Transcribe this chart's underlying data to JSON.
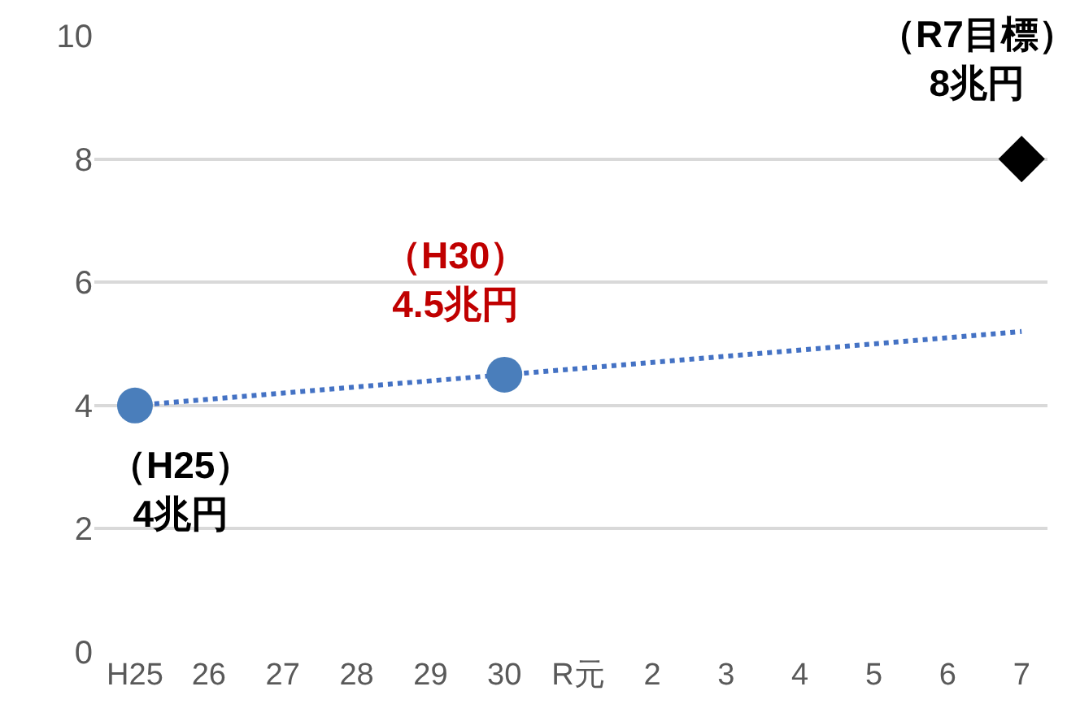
{
  "chart_data": {
    "type": "scatter",
    "categories": [
      "H25",
      "26",
      "27",
      "28",
      "29",
      "30",
      "R元",
      "2",
      "3",
      "4",
      "5",
      "6",
      "7"
    ],
    "ylim": [
      0,
      10
    ],
    "yticks": [
      0,
      2,
      4,
      6,
      8,
      10
    ],
    "grid": "y",
    "series": [
      {
        "type": "scatter",
        "color": "#4a7ebb",
        "marker": "circle",
        "values": [
          4,
          null,
          null,
          null,
          null,
          4.5,
          null,
          null,
          null,
          null,
          null,
          null,
          null
        ]
      },
      {
        "type": "scatter",
        "color": "#000000",
        "marker": "diamond",
        "values": [
          null,
          null,
          null,
          null,
          null,
          null,
          null,
          null,
          null,
          null,
          null,
          null,
          8
        ]
      },
      {
        "type": "line",
        "color": "#4472c4",
        "line_style": "dotted",
        "x": [
          "H25",
          "7"
        ],
        "values": [
          4.0,
          5.2
        ]
      }
    ],
    "annotations": [
      {
        "text": "（H25）\n4兆円",
        "x": "H25",
        "y": 4
      },
      {
        "text": "（H30）\n4.5兆円",
        "x": "30",
        "y": 4.5
      },
      {
        "text": "（R7目標）\n8兆円",
        "x": "7",
        "y": 8
      }
    ]
  }
}
